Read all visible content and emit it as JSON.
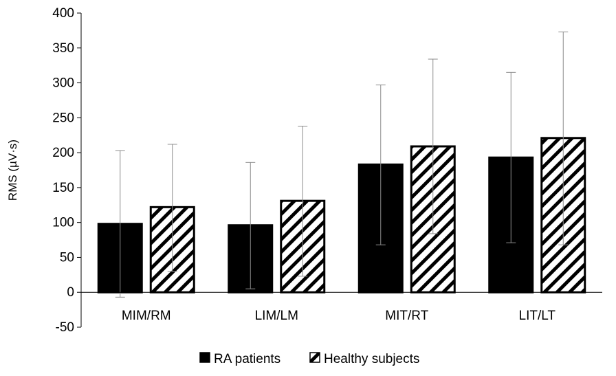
{
  "chart_data": {
    "type": "bar",
    "ylabel": "RMS (µV·s)",
    "xlabel": "",
    "ylim": [
      -50,
      400
    ],
    "yticks": [
      -50,
      0,
      50,
      100,
      150,
      200,
      250,
      300,
      350,
      400
    ],
    "categories": [
      "MIM/RM",
      "LIM/LM",
      "MIT/RT",
      "LIT/LT"
    ],
    "series": [
      {
        "name": "RA patients",
        "fill": "#000000",
        "pattern": "solid",
        "values": [
          98,
          96,
          183,
          193
        ],
        "error_high": [
          203,
          186,
          297,
          315
        ],
        "error_low": [
          -7,
          5,
          68,
          71
        ]
      },
      {
        "name": "Healthy subjects",
        "fill": "#ffffff",
        "pattern": "diagonal-hatch",
        "values": [
          122,
          131,
          209,
          221
        ],
        "error_high": [
          212,
          238,
          334,
          373
        ],
        "error_low": [
          30,
          23,
          84,
          68
        ]
      }
    ],
    "grid": false,
    "legend_position": "bottom"
  }
}
